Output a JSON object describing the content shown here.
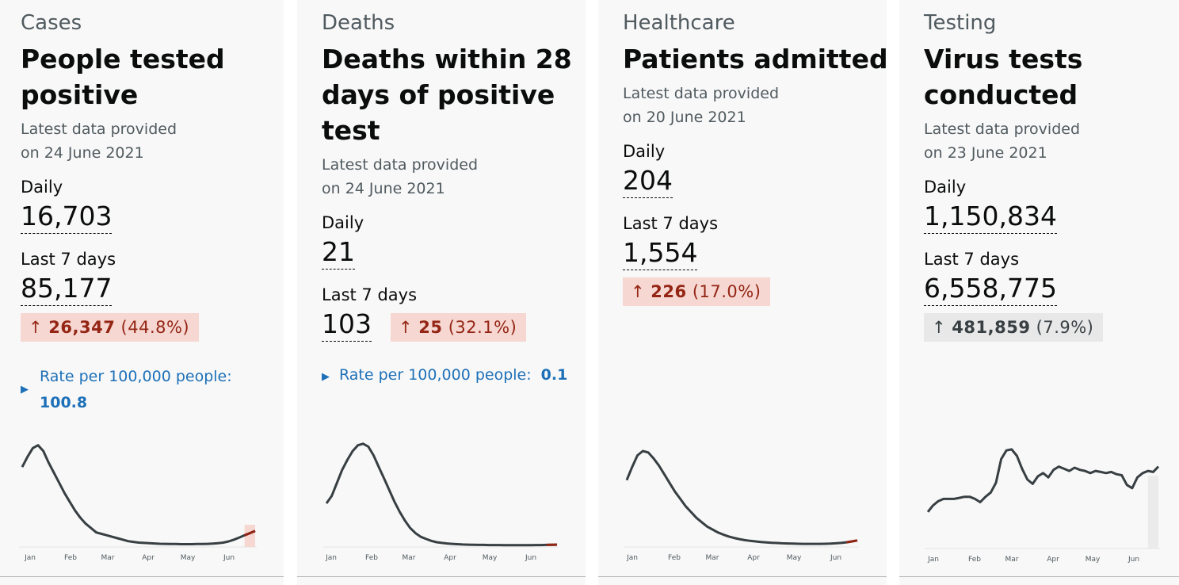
{
  "cards": [
    {
      "category": "Cases",
      "headline_lines": [
        "People tested",
        "positive"
      ],
      "latest_line1": "Latest data provided",
      "latest_line2": "on 24 June 2021",
      "daily_label": "Daily",
      "daily_value": "16,703",
      "week_label": "Last 7 days",
      "week_value": "85,177",
      "change_arrow": "↑",
      "change_value": "26,347",
      "change_pct": "(44.8%)",
      "change_color": "red",
      "rate_label": "Rate per 100,000 people:",
      "rate_value": "100.8",
      "month_labels": [
        "Jan",
        "Feb",
        "Mar",
        "Apr",
        "May",
        "Jun"
      ]
    },
    {
      "category": "Deaths",
      "headline_lines": [
        "Deaths within 28",
        "days of positive",
        "test"
      ],
      "latest_line1": "Latest data provided",
      "latest_line2": "on 24 June 2021",
      "daily_label": "Daily",
      "daily_value": "21",
      "week_label": "Last 7 days",
      "week_value": "103",
      "change_arrow": "↑",
      "change_value": "25",
      "change_pct": "(32.1%)",
      "change_color": "red",
      "rate_label": "Rate per 100,000 people:",
      "rate_value": "0.1",
      "month_labels": [
        "Jan",
        "Feb",
        "Mar",
        "Apr",
        "May",
        "Jun"
      ]
    },
    {
      "category": "Healthcare",
      "headline_lines": [
        "Patients admitted"
      ],
      "latest_line1": "Latest data provided",
      "latest_line2": "on 20 June 2021",
      "daily_label": "Daily",
      "daily_value": "204",
      "week_label": "Last 7 days",
      "week_value": "1,554",
      "change_arrow": "↑",
      "change_value": "226",
      "change_pct": "(17.0%)",
      "change_color": "red",
      "month_labels": [
        "Jan",
        "Feb",
        "Mar",
        "Apr",
        "May",
        "Jun"
      ]
    },
    {
      "category": "Testing",
      "headline_lines": [
        "Virus tests",
        "conducted"
      ],
      "latest_line1": "Latest data provided",
      "latest_line2": "on 23 June 2021",
      "daily_label": "Daily",
      "daily_value": "1,150,834",
      "week_label": "Last 7 days",
      "week_value": "6,558,775",
      "change_arrow": "↑",
      "change_value": "481,859",
      "change_pct": "(7.9%)",
      "change_color": "grey",
      "month_labels": [
        "Jan",
        "Feb",
        "Mar",
        "Apr",
        "May",
        "Jun"
      ]
    }
  ],
  "colors": {
    "card_background": "#f8f8f8",
    "trend_line": "#383f43",
    "increase_red": "#942514",
    "increase_red_background": "#f6d7d2",
    "neutral_grey_background": "#e8e8e8",
    "link_blue": "#1d70b8"
  },
  "chart_data": [
    {
      "type": "line",
      "title": "",
      "xlabel": "",
      "ylabel": "",
      "x_tick_labels": [
        "Jan",
        "Feb",
        "Mar",
        "Apr",
        "May",
        "Jun"
      ],
      "x": [
        0,
        4,
        8,
        12,
        16,
        20,
        24,
        28,
        32,
        36,
        40,
        44,
        48,
        52,
        56,
        60,
        64,
        68,
        72,
        76,
        80,
        84,
        88,
        92,
        96,
        100,
        104,
        108,
        112,
        116,
        120,
        124,
        128,
        132,
        136,
        140,
        144,
        148,
        152,
        156,
        160,
        164,
        168,
        172,
        176
      ],
      "values": [
        55,
        62,
        68,
        70,
        66,
        58,
        51,
        44,
        37,
        31,
        25,
        20,
        16,
        13,
        10,
        9,
        8,
        7,
        6,
        5,
        4,
        3.5,
        3,
        2.8,
        2.6,
        2.4,
        2.2,
        2.1,
        2.0,
        2.0,
        1.9,
        1.9,
        1.9,
        2.0,
        2.0,
        2.1,
        2.3,
        2.6,
        3.0,
        3.8,
        5,
        6.5,
        8,
        9.5,
        11
      ],
      "highlight_last_days": 7
    },
    {
      "type": "line",
      "title": "",
      "xlabel": "",
      "ylabel": "",
      "x_tick_labels": [
        "Jan",
        "Feb",
        "Mar",
        "Apr",
        "May",
        "Jun"
      ],
      "x": [
        0,
        4,
        8,
        12,
        16,
        20,
        24,
        28,
        32,
        36,
        40,
        44,
        48,
        52,
        56,
        60,
        64,
        68,
        72,
        76,
        80,
        84,
        88,
        92,
        96,
        100,
        104,
        108,
        112,
        116,
        120,
        124,
        128,
        132,
        136,
        140,
        144,
        148,
        152,
        156,
        160,
        164,
        168,
        172,
        176
      ],
      "values": [
        30,
        35,
        44,
        53,
        60,
        66,
        70,
        71,
        69,
        63,
        55,
        47,
        39,
        31,
        24,
        18,
        13,
        9.5,
        7,
        5.5,
        4.2,
        3.3,
        2.8,
        2.4,
        2.1,
        1.9,
        1.7,
        1.6,
        1.5,
        1.4,
        1.4,
        1.3,
        1.3,
        1.3,
        1.2,
        1.2,
        1.2,
        1.2,
        1.2,
        1.2,
        1.3,
        1.3,
        1.4,
        1.5,
        1.6
      ],
      "highlight_last_days": 7
    },
    {
      "type": "line",
      "title": "",
      "xlabel": "",
      "ylabel": "",
      "x_tick_labels": [
        "Jan",
        "Feb",
        "Mar",
        "Apr",
        "May",
        "Jun"
      ],
      "x": [
        0,
        4,
        8,
        12,
        16,
        20,
        24,
        28,
        32,
        36,
        40,
        44,
        48,
        52,
        56,
        60,
        64,
        68,
        72,
        76,
        80,
        84,
        88,
        92,
        96,
        100,
        104,
        108,
        112,
        116,
        120,
        124,
        128,
        132,
        136,
        140,
        144,
        148,
        152,
        156,
        160,
        164,
        168,
        172
      ],
      "values": [
        46,
        55,
        63,
        66,
        65,
        61,
        56,
        50,
        44,
        38,
        33,
        28,
        24,
        20,
        17,
        14,
        12,
        10,
        8.5,
        7.2,
        6.2,
        5.4,
        4.7,
        4.2,
        3.8,
        3.4,
        3.1,
        2.9,
        2.7,
        2.5,
        2.4,
        2.3,
        2.2,
        2.1,
        2.1,
        2.1,
        2.1,
        2.2,
        2.3,
        2.5,
        2.8,
        3.2,
        3.8,
        4.5
      ],
      "highlight_last_days": 7
    },
    {
      "type": "line",
      "title": "",
      "xlabel": "",
      "ylabel": "",
      "x_tick_labels": [
        "Jan",
        "Feb",
        "Mar",
        "Apr",
        "May",
        "Jun"
      ],
      "x": [
        0,
        4,
        8,
        12,
        16,
        20,
        24,
        28,
        32,
        36,
        40,
        44,
        48,
        52,
        56,
        60,
        64,
        68,
        72,
        76,
        80,
        84,
        88,
        92,
        96,
        100,
        104,
        108,
        112,
        116,
        120,
        124,
        128,
        132,
        136,
        140,
        144,
        148,
        152,
        156,
        160,
        164,
        168,
        172,
        176
      ],
      "values": [
        34,
        40,
        44,
        46,
        46,
        46,
        47,
        48,
        48,
        46,
        43,
        48,
        52,
        61,
        83,
        91,
        92,
        86,
        74,
        64,
        60,
        67,
        70,
        66,
        73,
        76,
        74,
        72,
        75,
        73,
        72,
        70,
        72,
        71,
        70,
        71,
        69,
        68,
        59,
        56,
        66,
        70,
        72,
        71,
        76
      ],
      "highlight_last_days": 7
    }
  ]
}
